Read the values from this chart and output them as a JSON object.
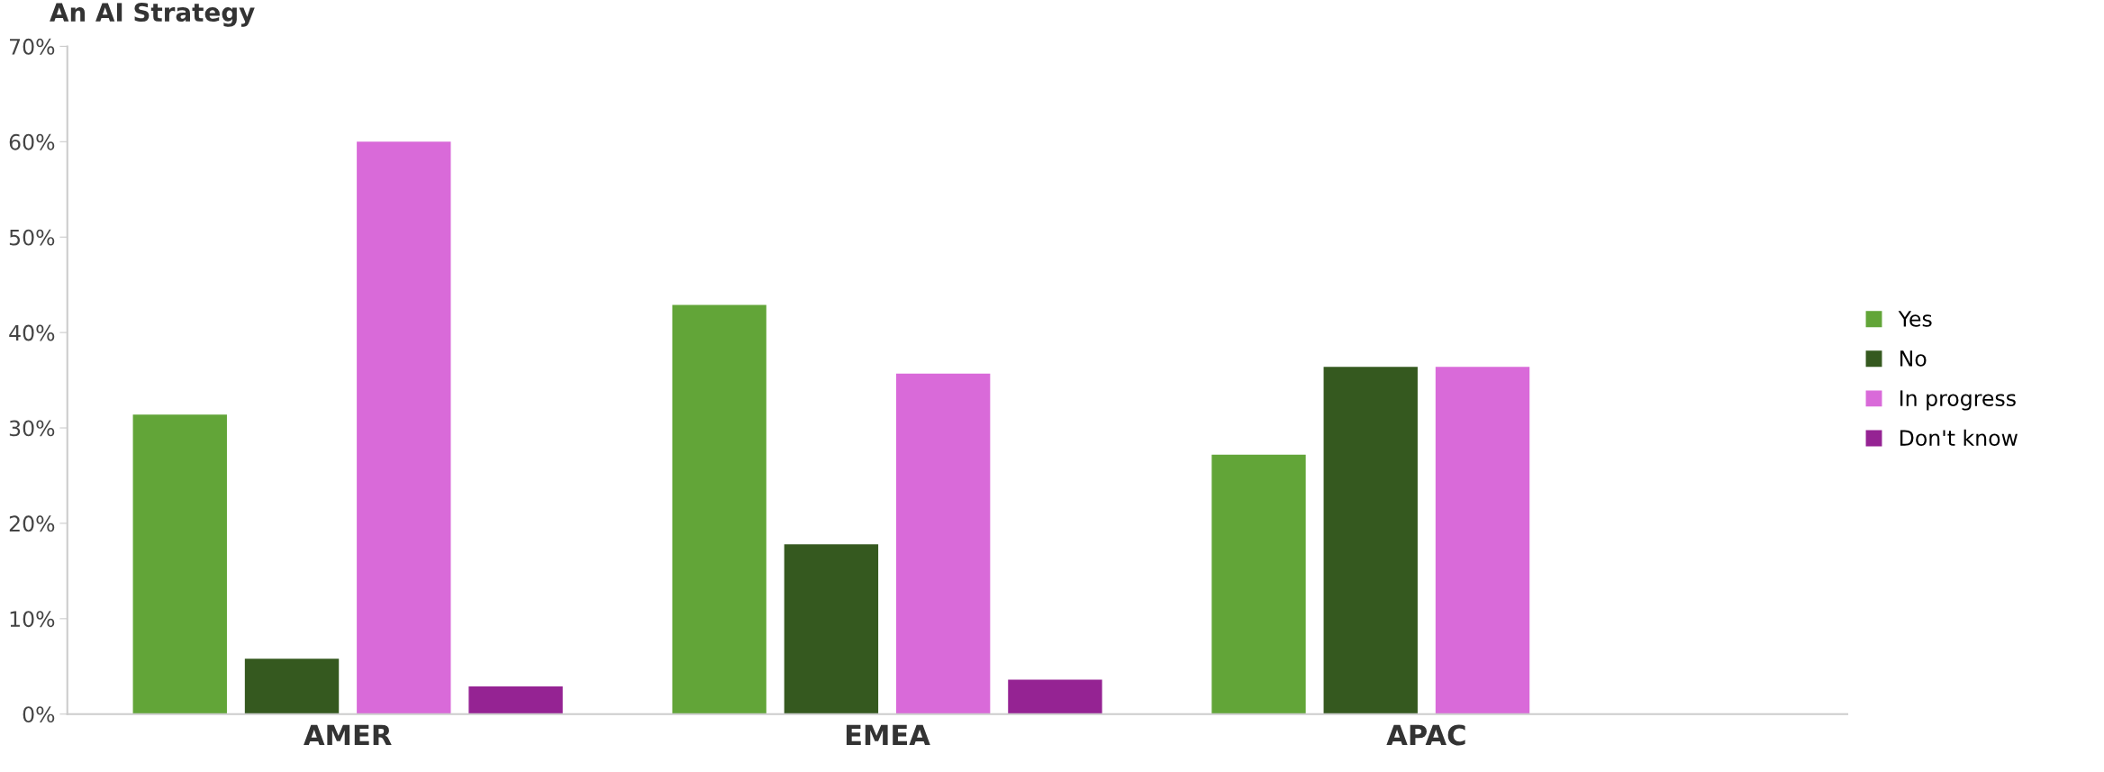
{
  "chart_data": {
    "type": "bar",
    "title": "An AI Strategy",
    "categories": [
      "AMER",
      "EMEA",
      "APAC"
    ],
    "series": [
      {
        "name": "Yes",
        "color": "#62a538",
        "values": [
          31.4,
          42.9,
          27.2
        ]
      },
      {
        "name": "No",
        "color": "#35591f",
        "values": [
          5.8,
          17.8,
          36.4
        ]
      },
      {
        "name": "In progress",
        "color": "#d96ad9",
        "values": [
          60.0,
          35.7,
          36.4
        ]
      },
      {
        "name": "Don't know",
        "color": "#952393",
        "values": [
          2.9,
          3.6,
          0
        ]
      }
    ],
    "ylim": [
      0,
      70
    ],
    "yticks": [
      {
        "value": 0,
        "label": "0%"
      },
      {
        "value": 10,
        "label": "10%"
      },
      {
        "value": 20,
        "label": "20%"
      },
      {
        "value": 30,
        "label": "30%"
      },
      {
        "value": 40,
        "label": "40%"
      },
      {
        "value": 50,
        "label": "50%"
      },
      {
        "value": 60,
        "label": "60%"
      },
      {
        "value": 70,
        "label": "70%"
      }
    ],
    "grid": false,
    "legend": "right"
  }
}
